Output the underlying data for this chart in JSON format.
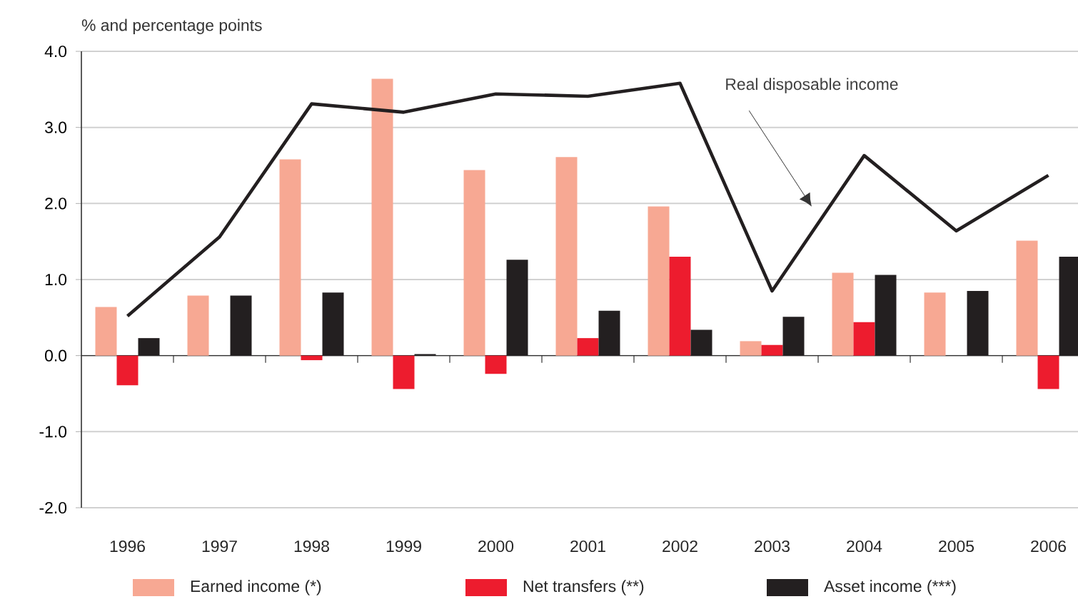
{
  "chart_data": {
    "type": "bar",
    "ylabel": "% and percentage points",
    "categories": [
      "1996",
      "1997",
      "1998",
      "1999",
      "2000",
      "2001",
      "2002",
      "2003",
      "2004",
      "2005",
      "2006"
    ],
    "series": [
      {
        "name": "Earned income (*)",
        "color": "#f7a893",
        "values": [
          0.64,
          0.79,
          2.58,
          3.64,
          2.44,
          2.61,
          1.96,
          0.19,
          1.09,
          0.83,
          1.51
        ]
      },
      {
        "name": "Net transfers (**)",
        "color": "#ed1c2e",
        "values": [
          -0.39,
          null,
          -0.06,
          -0.44,
          -0.24,
          0.23,
          1.3,
          0.14,
          0.44,
          null,
          -0.44
        ]
      },
      {
        "name": "Asset income (***)",
        "color": "#231f20",
        "values": [
          0.23,
          0.79,
          0.83,
          0.02,
          1.26,
          0.59,
          0.34,
          0.51,
          1.06,
          0.85,
          1.3
        ]
      },
      {
        "name": "Real disposable income",
        "type": "line",
        "color": "#231f20",
        "values": [
          0.52,
          1.56,
          3.31,
          3.2,
          3.44,
          3.41,
          3.58,
          0.85,
          2.63,
          1.64,
          2.37
        ]
      }
    ],
    "ylim": [
      -2,
      4
    ],
    "yticks": [
      {
        "value": -2,
        "label": "-2.0"
      },
      {
        "value": -1,
        "label": "-1.0"
      },
      {
        "value": 0,
        "label": "0.0"
      },
      {
        "value": 1,
        "label": "1.0"
      },
      {
        "value": 2,
        "label": "2.0"
      },
      {
        "value": 3,
        "label": "3.0"
      },
      {
        "value": 4,
        "label": "4.0"
      }
    ],
    "grid": "y",
    "legend": "bottom"
  }
}
